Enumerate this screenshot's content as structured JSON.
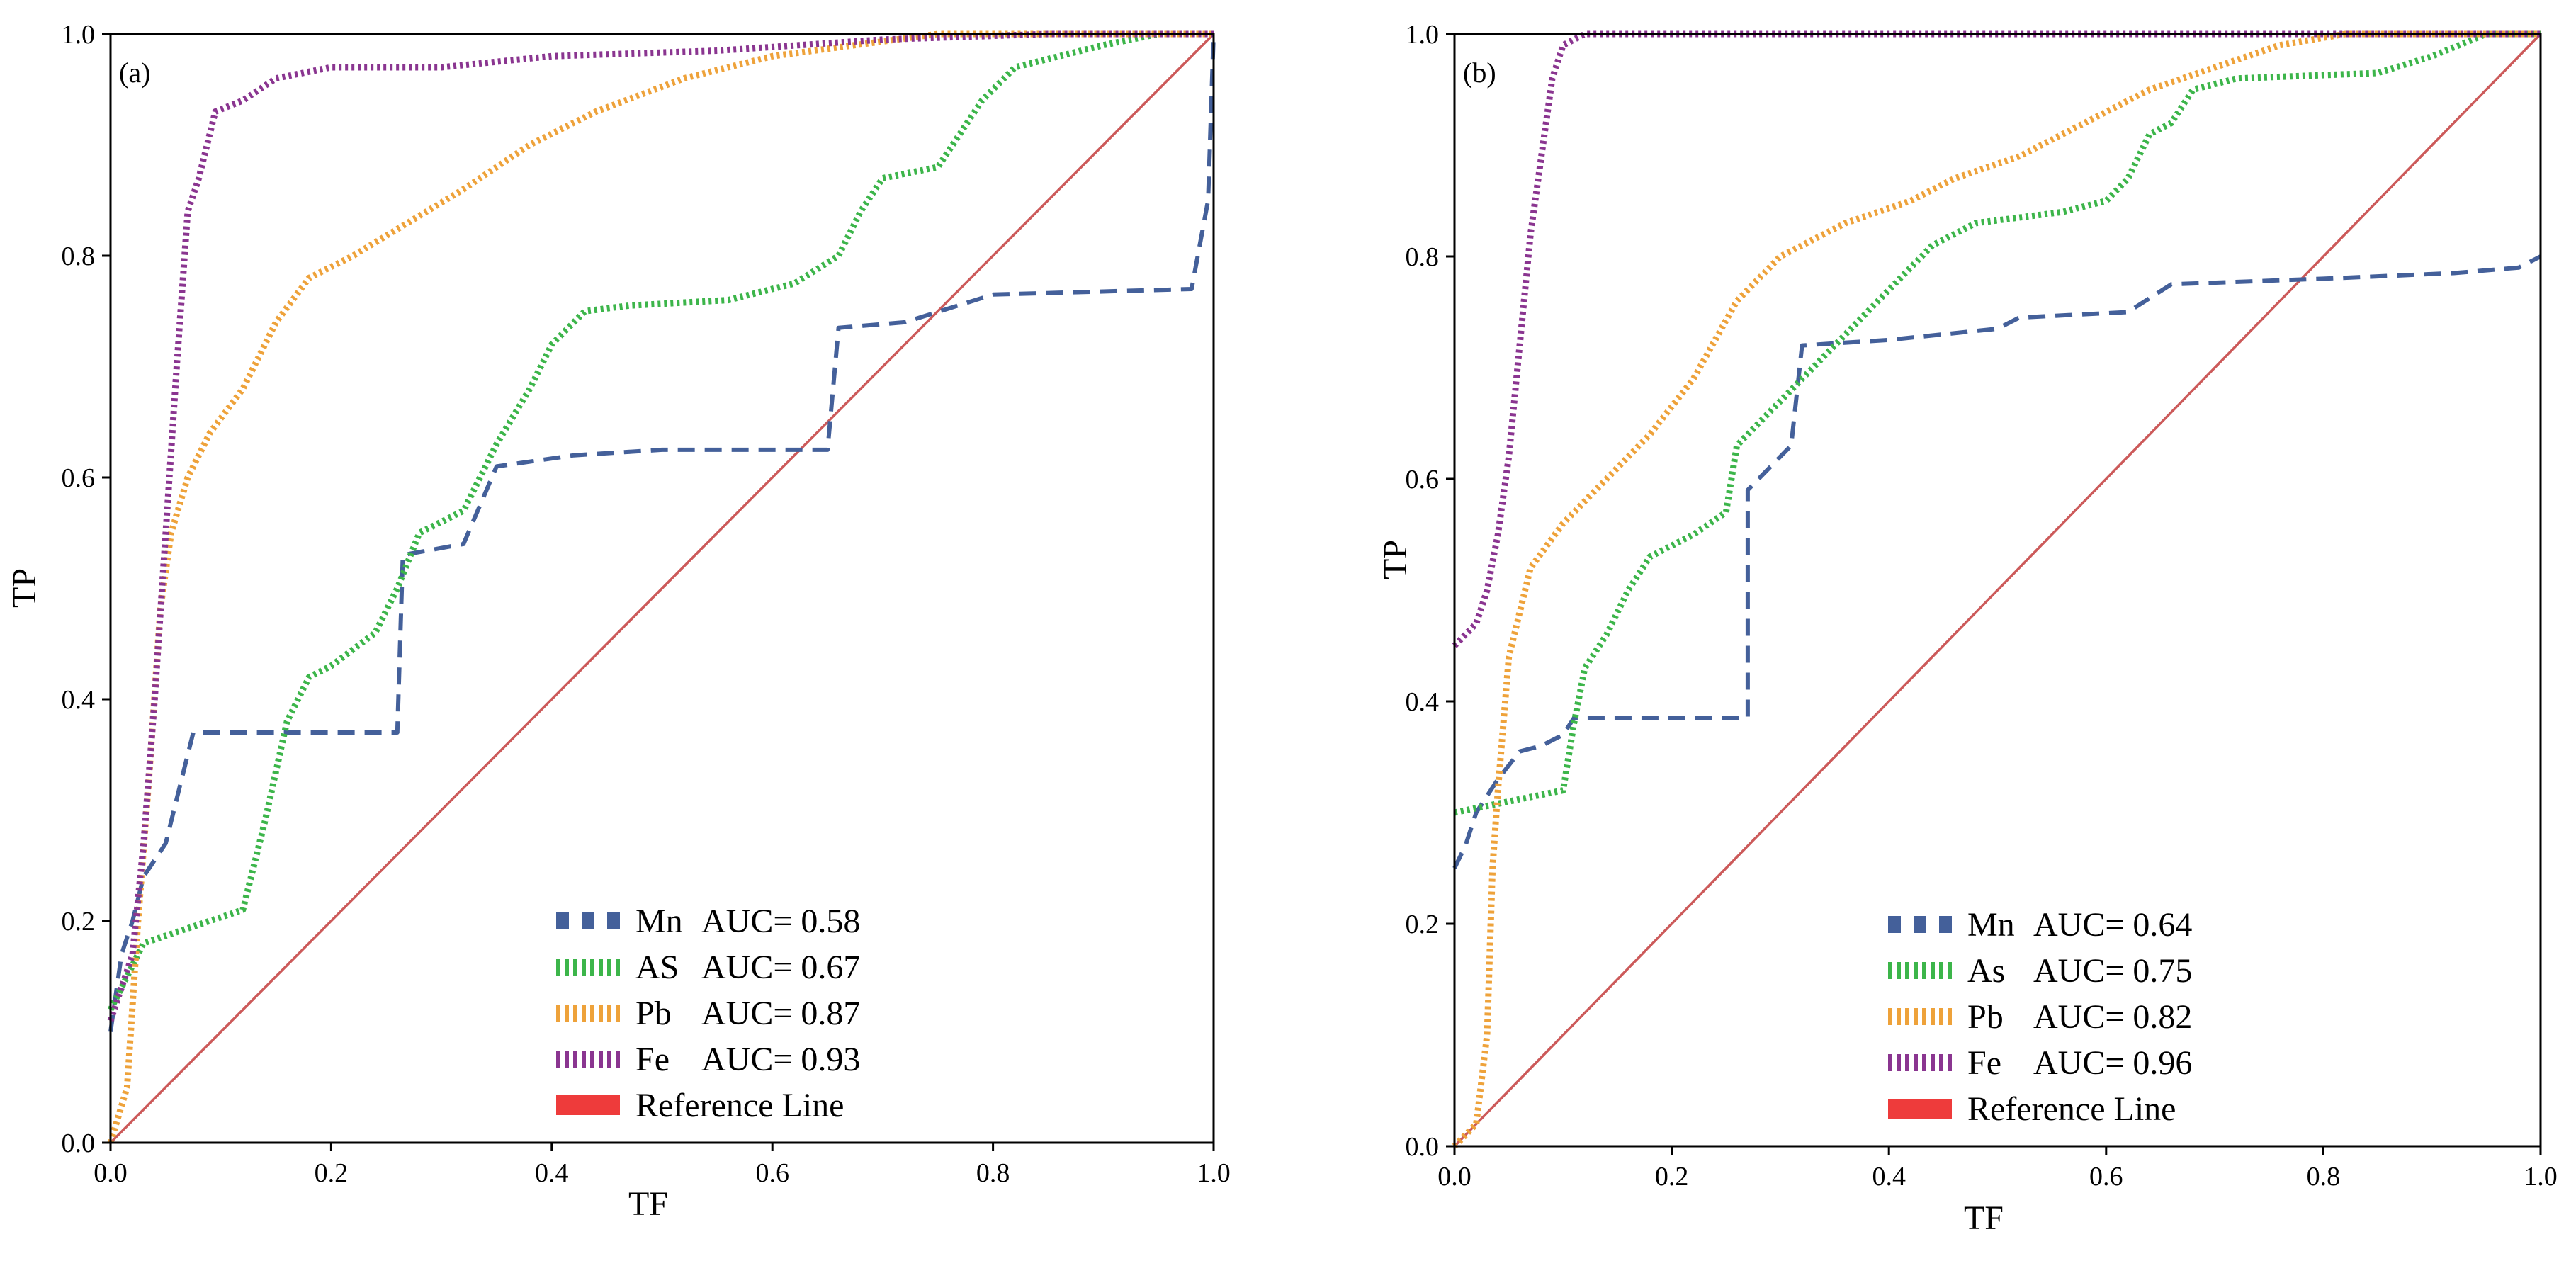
{
  "chart_data": [
    {
      "type": "line",
      "panel_label": "(a)",
      "xlabel": "TF",
      "ylabel": "TP",
      "xlim": [
        0,
        1
      ],
      "ylim": [
        0,
        1
      ],
      "xticks": [
        "0.0",
        "0.2",
        "0.4",
        "0.6",
        "0.8",
        "1.0"
      ],
      "yticks": [
        "0.0",
        "0.2",
        "0.4",
        "0.6",
        "0.8",
        "1.0"
      ],
      "grid": false,
      "legend_position": "bottom-right",
      "series": [
        {
          "name": "Mn",
          "auc_label": "AUC= 0.58",
          "color": "#44609a",
          "style": "dashed",
          "points": [
            [
              0,
              0.1
            ],
            [
              0.01,
              0.17
            ],
            [
              0.02,
              0.2
            ],
            [
              0.03,
              0.24
            ],
            [
              0.05,
              0.27
            ],
            [
              0.06,
              0.31
            ],
            [
              0.075,
              0.37
            ],
            [
              0.26,
              0.37
            ],
            [
              0.265,
              0.53
            ],
            [
              0.32,
              0.54
            ],
            [
              0.35,
              0.61
            ],
            [
              0.42,
              0.62
            ],
            [
              0.5,
              0.625
            ],
            [
              0.65,
              0.625
            ],
            [
              0.66,
              0.735
            ],
            [
              0.72,
              0.74
            ],
            [
              0.8,
              0.765
            ],
            [
              0.98,
              0.77
            ],
            [
              0.995,
              0.85
            ],
            [
              1.0,
              1.0
            ]
          ]
        },
        {
          "name": "AS",
          "auc_label": "AUC= 0.67",
          "color": "#3cb54a",
          "style": "dotted",
          "points": [
            [
              0,
              0.12
            ],
            [
              0.01,
              0.14
            ],
            [
              0.03,
              0.18
            ],
            [
              0.06,
              0.19
            ],
            [
              0.09,
              0.2
            ],
            [
              0.12,
              0.21
            ],
            [
              0.14,
              0.29
            ],
            [
              0.16,
              0.38
            ],
            [
              0.18,
              0.42
            ],
            [
              0.2,
              0.43
            ],
            [
              0.24,
              0.46
            ],
            [
              0.26,
              0.5
            ],
            [
              0.28,
              0.55
            ],
            [
              0.32,
              0.57
            ],
            [
              0.35,
              0.63
            ],
            [
              0.38,
              0.68
            ],
            [
              0.4,
              0.72
            ],
            [
              0.43,
              0.75
            ],
            [
              0.47,
              0.755
            ],
            [
              0.56,
              0.76
            ],
            [
              0.62,
              0.775
            ],
            [
              0.66,
              0.8
            ],
            [
              0.68,
              0.84
            ],
            [
              0.7,
              0.87
            ],
            [
              0.75,
              0.88
            ],
            [
              0.79,
              0.94
            ],
            [
              0.82,
              0.97
            ],
            [
              0.9,
              0.99
            ],
            [
              0.95,
              1.0
            ],
            [
              1.0,
              1.0
            ]
          ]
        },
        {
          "name": "Pb",
          "auc_label": "AUC= 0.87",
          "color": "#eea23a",
          "style": "dotted",
          "points": [
            [
              0,
              0
            ],
            [
              0.015,
              0.05
            ],
            [
              0.025,
              0.2
            ],
            [
              0.035,
              0.33
            ],
            [
              0.045,
              0.48
            ],
            [
              0.055,
              0.55
            ],
            [
              0.07,
              0.6
            ],
            [
              0.09,
              0.64
            ],
            [
              0.12,
              0.68
            ],
            [
              0.15,
              0.74
            ],
            [
              0.18,
              0.78
            ],
            [
              0.22,
              0.8
            ],
            [
              0.27,
              0.83
            ],
            [
              0.32,
              0.86
            ],
            [
              0.38,
              0.9
            ],
            [
              0.44,
              0.93
            ],
            [
              0.52,
              0.96
            ],
            [
              0.6,
              0.98
            ],
            [
              0.75,
              1.0
            ],
            [
              1.0,
              1.0
            ]
          ]
        },
        {
          "name": "Fe",
          "auc_label": "AUC= 0.93",
          "color": "#8a3590",
          "style": "dotted",
          "points": [
            [
              0,
              0.11
            ],
            [
              0.01,
              0.14
            ],
            [
              0.02,
              0.17
            ],
            [
              0.03,
              0.27
            ],
            [
              0.04,
              0.4
            ],
            [
              0.05,
              0.55
            ],
            [
              0.06,
              0.7
            ],
            [
              0.07,
              0.84
            ],
            [
              0.08,
              0.87
            ],
            [
              0.095,
              0.93
            ],
            [
              0.12,
              0.94
            ],
            [
              0.15,
              0.96
            ],
            [
              0.2,
              0.97
            ],
            [
              0.3,
              0.97
            ],
            [
              0.4,
              0.98
            ],
            [
              0.55,
              0.985
            ],
            [
              0.7,
              0.995
            ],
            [
              0.85,
              1.0
            ],
            [
              1.0,
              1.0
            ]
          ]
        },
        {
          "name": "Reference Line",
          "auc_label": "",
          "color": "#cc5a5a",
          "style": "solid",
          "points": [
            [
              0,
              0
            ],
            [
              1,
              1
            ]
          ]
        }
      ]
    },
    {
      "type": "line",
      "panel_label": "(b)",
      "xlabel": "TF",
      "ylabel": "TP",
      "xlim": [
        0,
        1
      ],
      "ylim": [
        0,
        1
      ],
      "xticks": [
        "0.0",
        "0.2",
        "0.4",
        "0.6",
        "0.8",
        "1.0"
      ],
      "yticks": [
        "0.0",
        "0.2",
        "0.4",
        "0.6",
        "0.8",
        "1.0"
      ],
      "grid": false,
      "legend_position": "bottom-right",
      "series": [
        {
          "name": "Mn",
          "auc_label": "AUC= 0.64",
          "color": "#44609a",
          "style": "dashed",
          "points": [
            [
              0,
              0.25
            ],
            [
              0.01,
              0.27
            ],
            [
              0.02,
              0.3
            ],
            [
              0.04,
              0.33
            ],
            [
              0.06,
              0.355
            ],
            [
              0.08,
              0.36
            ],
            [
              0.1,
              0.37
            ],
            [
              0.11,
              0.385
            ],
            [
              0.27,
              0.385
            ],
            [
              0.27,
              0.59
            ],
            [
              0.31,
              0.63
            ],
            [
              0.32,
              0.72
            ],
            [
              0.4,
              0.725
            ],
            [
              0.5,
              0.735
            ],
            [
              0.52,
              0.745
            ],
            [
              0.62,
              0.75
            ],
            [
              0.66,
              0.775
            ],
            [
              0.8,
              0.78
            ],
            [
              0.92,
              0.785
            ],
            [
              0.98,
              0.79
            ],
            [
              1.0,
              0.8
            ]
          ]
        },
        {
          "name": "As",
          "auc_label": "AUC= 0.75",
          "color": "#3cb54a",
          "style": "dotted",
          "points": [
            [
              0,
              0.3
            ],
            [
              0.05,
              0.31
            ],
            [
              0.1,
              0.32
            ],
            [
              0.11,
              0.38
            ],
            [
              0.12,
              0.43
            ],
            [
              0.14,
              0.46
            ],
            [
              0.16,
              0.5
            ],
            [
              0.18,
              0.53
            ],
            [
              0.22,
              0.55
            ],
            [
              0.25,
              0.57
            ],
            [
              0.26,
              0.63
            ],
            [
              0.28,
              0.65
            ],
            [
              0.32,
              0.69
            ],
            [
              0.36,
              0.73
            ],
            [
              0.4,
              0.77
            ],
            [
              0.44,
              0.81
            ],
            [
              0.48,
              0.83
            ],
            [
              0.56,
              0.84
            ],
            [
              0.6,
              0.85
            ],
            [
              0.62,
              0.87
            ],
            [
              0.64,
              0.91
            ],
            [
              0.66,
              0.92
            ],
            [
              0.68,
              0.95
            ],
            [
              0.72,
              0.96
            ],
            [
              0.85,
              0.965
            ],
            [
              0.9,
              0.98
            ],
            [
              0.95,
              1.0
            ],
            [
              1.0,
              1.0
            ]
          ]
        },
        {
          "name": "Pb",
          "auc_label": "AUC= 0.82",
          "color": "#eea23a",
          "style": "dotted",
          "points": [
            [
              0,
              0
            ],
            [
              0.02,
              0.02
            ],
            [
              0.03,
              0.1
            ],
            [
              0.035,
              0.25
            ],
            [
              0.04,
              0.32
            ],
            [
              0.05,
              0.44
            ],
            [
              0.07,
              0.52
            ],
            [
              0.1,
              0.56
            ],
            [
              0.14,
              0.6
            ],
            [
              0.18,
              0.64
            ],
            [
              0.22,
              0.69
            ],
            [
              0.26,
              0.76
            ],
            [
              0.3,
              0.8
            ],
            [
              0.36,
              0.83
            ],
            [
              0.42,
              0.85
            ],
            [
              0.46,
              0.87
            ],
            [
              0.52,
              0.89
            ],
            [
              0.58,
              0.92
            ],
            [
              0.64,
              0.95
            ],
            [
              0.7,
              0.97
            ],
            [
              0.76,
              0.99
            ],
            [
              0.82,
              1.0
            ],
            [
              1.0,
              1.0
            ]
          ]
        },
        {
          "name": "Fe",
          "auc_label": "AUC= 0.96",
          "color": "#8a3590",
          "style": "dotted",
          "points": [
            [
              0,
              0.45
            ],
            [
              0.01,
              0.46
            ],
            [
              0.02,
              0.47
            ],
            [
              0.03,
              0.5
            ],
            [
              0.04,
              0.55
            ],
            [
              0.05,
              0.62
            ],
            [
              0.06,
              0.72
            ],
            [
              0.07,
              0.82
            ],
            [
              0.08,
              0.89
            ],
            [
              0.09,
              0.96
            ],
            [
              0.1,
              0.99
            ],
            [
              0.12,
              1.0
            ],
            [
              1.0,
              1.0
            ]
          ]
        },
        {
          "name": "Reference Line",
          "auc_label": "",
          "color": "#cc5a5a",
          "style": "solid",
          "points": [
            [
              0,
              0
            ],
            [
              1,
              1
            ]
          ]
        }
      ]
    }
  ]
}
